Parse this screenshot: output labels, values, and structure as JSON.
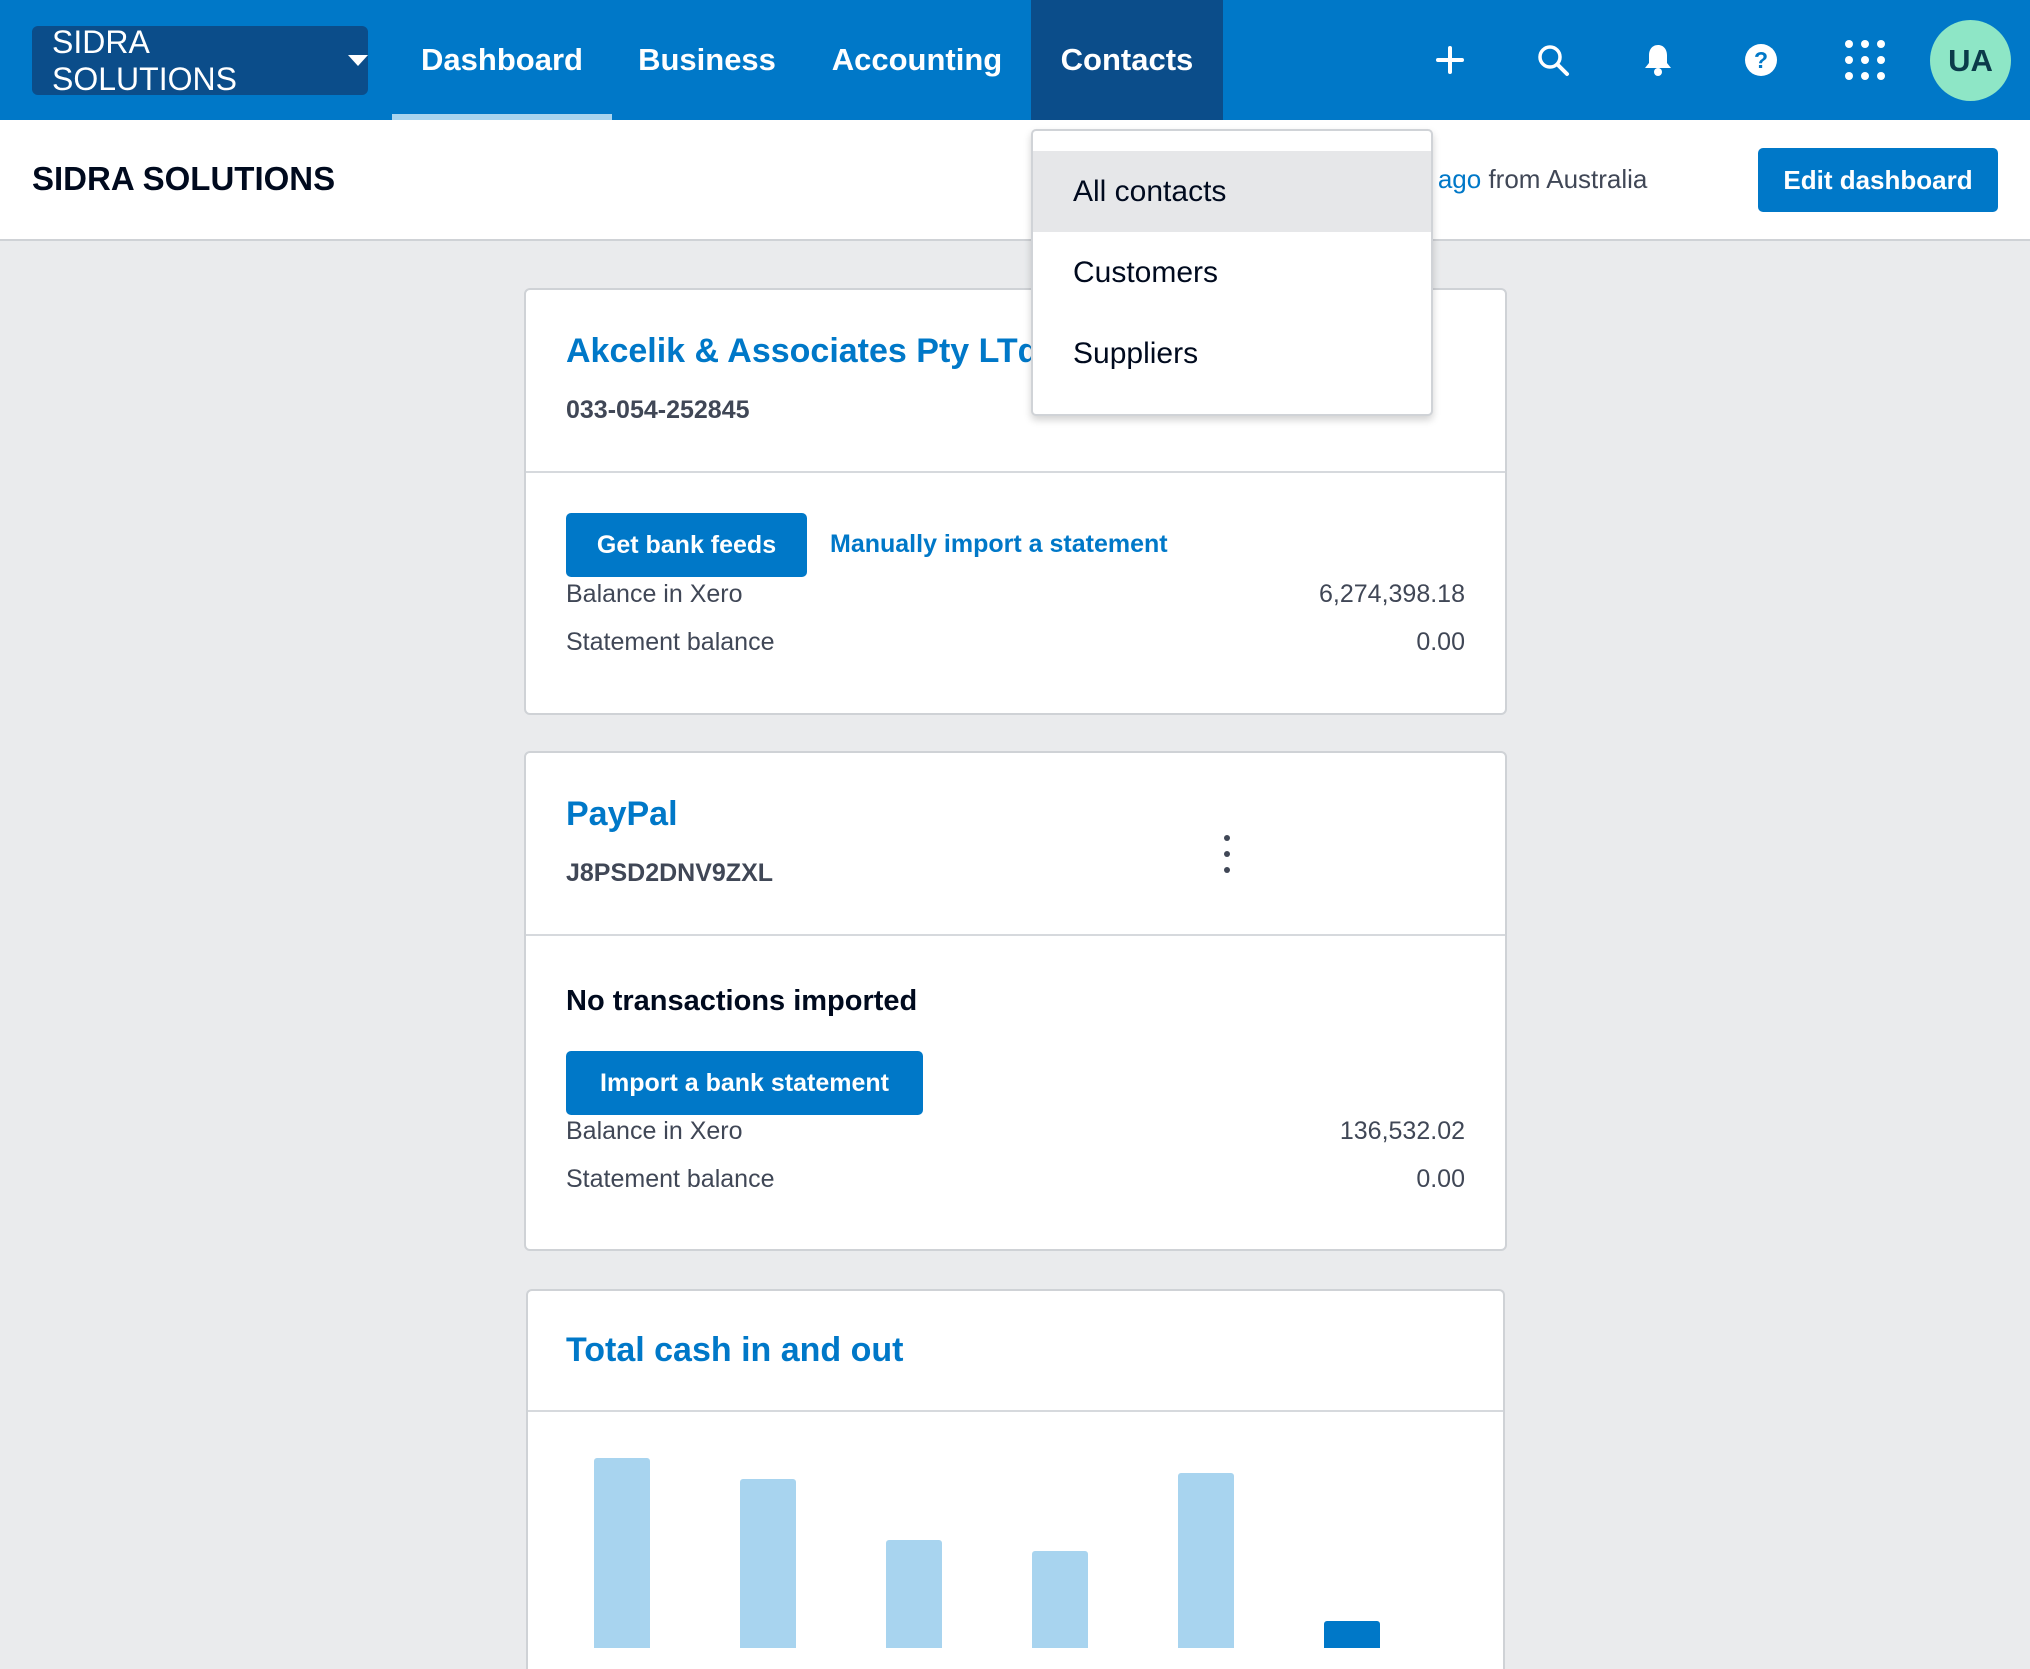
{
  "topbar": {
    "org_switcher_label": "SIDRA SOLUTIONS",
    "nav": [
      "Dashboard",
      "Business",
      "Accounting",
      "Contacts"
    ],
    "active_tab": "Dashboard",
    "open_menu": "Contacts",
    "icons": [
      "plus-icon",
      "search-icon",
      "bell-icon",
      "help-icon",
      "apps-grid-icon"
    ],
    "avatar_initials": "UA"
  },
  "subheader": {
    "title": "SIDRA SOLUTIONS",
    "last_login_link": "nute ago",
    "last_login_suffix": " from Australia",
    "edit_dashboard_label": "Edit dashboard"
  },
  "contacts_menu": {
    "items": [
      "All contacts",
      "Customers",
      "Suppliers"
    ],
    "highlighted": "All contacts"
  },
  "bank_account_1": {
    "name": "Akcelik & Associates Pty LTd",
    "account_number": "033-054-252845",
    "get_feeds_label": "Get bank feeds",
    "import_link_label": "Manually import a statement",
    "balance_label": "Balance in Xero",
    "balance_value": "6,274,398.18",
    "statement_label": "Statement balance",
    "statement_value": "0.00"
  },
  "bank_account_2": {
    "name": "PayPal",
    "account_number": "J8PSD2DNV9ZXL",
    "status_heading": "No transactions imported",
    "import_btn_label": "Import a bank statement",
    "balance_label": "Balance in Xero",
    "balance_value": "136,532.02",
    "statement_label": "Statement balance",
    "statement_value": "0.00"
  },
  "cash_card": {
    "title": "Total cash in and out"
  },
  "colors": {
    "brand_blue": "#0078c8",
    "nav_dark": "#0b4d8a",
    "bar_light": "#a8d4ef",
    "avatar_green": "#8ee6c6"
  },
  "chart_data": {
    "type": "bar",
    "categories": [
      "",
      "",
      "",
      "",
      "",
      ""
    ],
    "series": [
      {
        "values": [
          100,
          89,
          57,
          51,
          92,
          14
        ]
      }
    ],
    "highlight_index": 5,
    "title": "Total cash in and out",
    "xlabel": "",
    "ylabel": ""
  }
}
